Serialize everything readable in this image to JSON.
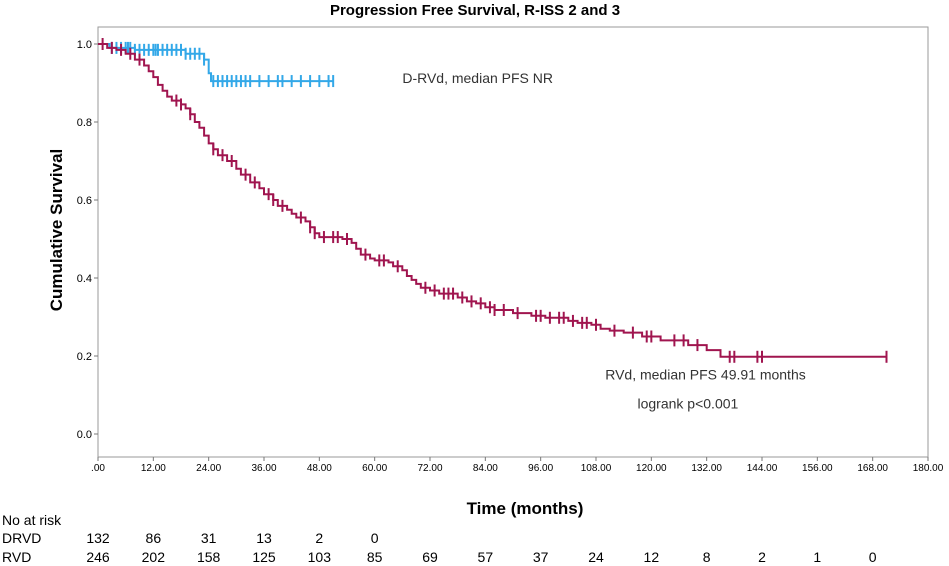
{
  "chart_data": {
    "type": "line",
    "title": "Progression Free Survival, R-ISS 2 and 3",
    "xlabel": "Time (months)",
    "ylabel": "Cumulative Survival",
    "xlim": [
      0,
      180
    ],
    "ylim": [
      0,
      1.0
    ],
    "x_ticks": [
      0,
      12,
      24,
      36,
      48,
      60,
      72,
      84,
      96,
      108,
      120,
      132,
      144,
      156,
      168,
      180
    ],
    "x_tick_labels": [
      ".00",
      "12.00",
      "24.00",
      "36.00",
      "48.00",
      "60.00",
      "72.00",
      "84.00",
      "96.00",
      "108.00",
      "120.00",
      "132.00",
      "144.00",
      "156.00",
      "168.00",
      "180.00"
    ],
    "y_ticks": [
      0,
      0.2,
      0.4,
      0.6,
      0.8,
      1.0
    ],
    "y_tick_labels": [
      "0.0",
      "0.2",
      "0.4",
      "0.6",
      "0.8",
      "1.0"
    ],
    "series": [
      {
        "name": "D-RVd",
        "color": "#33a8e8",
        "steps": [
          [
            0,
            1.0
          ],
          [
            2.5,
            0.99
          ],
          [
            8,
            0.985
          ],
          [
            19,
            0.975
          ],
          [
            23,
            0.96
          ],
          [
            24,
            0.925
          ],
          [
            24.5,
            0.905
          ],
          [
            51,
            0.905
          ]
        ],
        "censor_times": [
          3,
          4,
          5,
          6,
          6.5,
          7,
          8,
          9,
          10,
          11,
          12,
          12.5,
          13,
          14,
          15,
          16,
          17,
          18,
          19,
          20,
          21,
          22,
          23,
          25,
          26,
          27,
          28,
          29,
          30,
          31,
          32,
          33,
          35,
          37,
          39,
          40,
          42,
          44,
          46,
          48,
          50,
          51
        ]
      },
      {
        "name": "RVd",
        "color": "#a0154f",
        "steps": [
          [
            0,
            1.0
          ],
          [
            2,
            0.99
          ],
          [
            4,
            0.985
          ],
          [
            6,
            0.975
          ],
          [
            8,
            0.96
          ],
          [
            10,
            0.945
          ],
          [
            11,
            0.93
          ],
          [
            12,
            0.915
          ],
          [
            13,
            0.895
          ],
          [
            14,
            0.88
          ],
          [
            15,
            0.865
          ],
          [
            16,
            0.855
          ],
          [
            18,
            0.845
          ],
          [
            19,
            0.835
          ],
          [
            20,
            0.82
          ],
          [
            21,
            0.8
          ],
          [
            22,
            0.785
          ],
          [
            23,
            0.765
          ],
          [
            24,
            0.745
          ],
          [
            25,
            0.73
          ],
          [
            26,
            0.715
          ],
          [
            28,
            0.7
          ],
          [
            30,
            0.68
          ],
          [
            31,
            0.665
          ],
          [
            33,
            0.645
          ],
          [
            35,
            0.63
          ],
          [
            36,
            0.615
          ],
          [
            38,
            0.6
          ],
          [
            39,
            0.585
          ],
          [
            41,
            0.575
          ],
          [
            42,
            0.565
          ],
          [
            43,
            0.555
          ],
          [
            45,
            0.545
          ],
          [
            46,
            0.53
          ],
          [
            47,
            0.515
          ],
          [
            48,
            0.505
          ],
          [
            53,
            0.5
          ],
          [
            55,
            0.49
          ],
          [
            56,
            0.475
          ],
          [
            57,
            0.46
          ],
          [
            59,
            0.45
          ],
          [
            60,
            0.445
          ],
          [
            63,
            0.44
          ],
          [
            64,
            0.43
          ],
          [
            66,
            0.42
          ],
          [
            67,
            0.405
          ],
          [
            68,
            0.395
          ],
          [
            69,
            0.385
          ],
          [
            70,
            0.375
          ],
          [
            72,
            0.368
          ],
          [
            74,
            0.36
          ],
          [
            78,
            0.35
          ],
          [
            80,
            0.34
          ],
          [
            82,
            0.335
          ],
          [
            84,
            0.325
          ],
          [
            86,
            0.318
          ],
          [
            90,
            0.31
          ],
          [
            94,
            0.303
          ],
          [
            97,
            0.298
          ],
          [
            102,
            0.29
          ],
          [
            104,
            0.285
          ],
          [
            107,
            0.28
          ],
          [
            109,
            0.27
          ],
          [
            111,
            0.265
          ],
          [
            114,
            0.26
          ],
          [
            118,
            0.25
          ],
          [
            122,
            0.24
          ],
          [
            128,
            0.228
          ],
          [
            132,
            0.215
          ],
          [
            135,
            0.198
          ],
          [
            171,
            0.198
          ]
        ],
        "censor_times": [
          1,
          3,
          5,
          7,
          9,
          17,
          18,
          20,
          25,
          27,
          29,
          32,
          34,
          37,
          38,
          40,
          44,
          46,
          47,
          49,
          51,
          52,
          54,
          58,
          61,
          62,
          65,
          71,
          73,
          75,
          76,
          77,
          79,
          81,
          83,
          85,
          86,
          88,
          91,
          95,
          96,
          98,
          100,
          101,
          103,
          105,
          106,
          108,
          112,
          116,
          119,
          120,
          125,
          127,
          130,
          137,
          138,
          143,
          144,
          171
        ]
      }
    ],
    "annotations": [
      {
        "text": "D-RVd, median PFS NR",
        "x": 66,
        "y": 0.9
      },
      {
        "text": "RVd, median PFS 49.91 months",
        "x": 110,
        "y": 0.14
      },
      {
        "text": "logrank p<0.001",
        "x": 117,
        "y": 0.065
      }
    ],
    "risk_table": {
      "title": "No at risk",
      "rows": [
        {
          "label": "DRVD",
          "values": [
            "132",
            "86",
            "31",
            "13",
            "2",
            "0"
          ]
        },
        {
          "label": "RVD",
          "values": [
            "246",
            "202",
            "158",
            "125",
            "103",
            "85",
            "69",
            "57",
            "37",
            "24",
            "12",
            "8",
            "2",
            "1",
            "0"
          ]
        }
      ]
    }
  }
}
